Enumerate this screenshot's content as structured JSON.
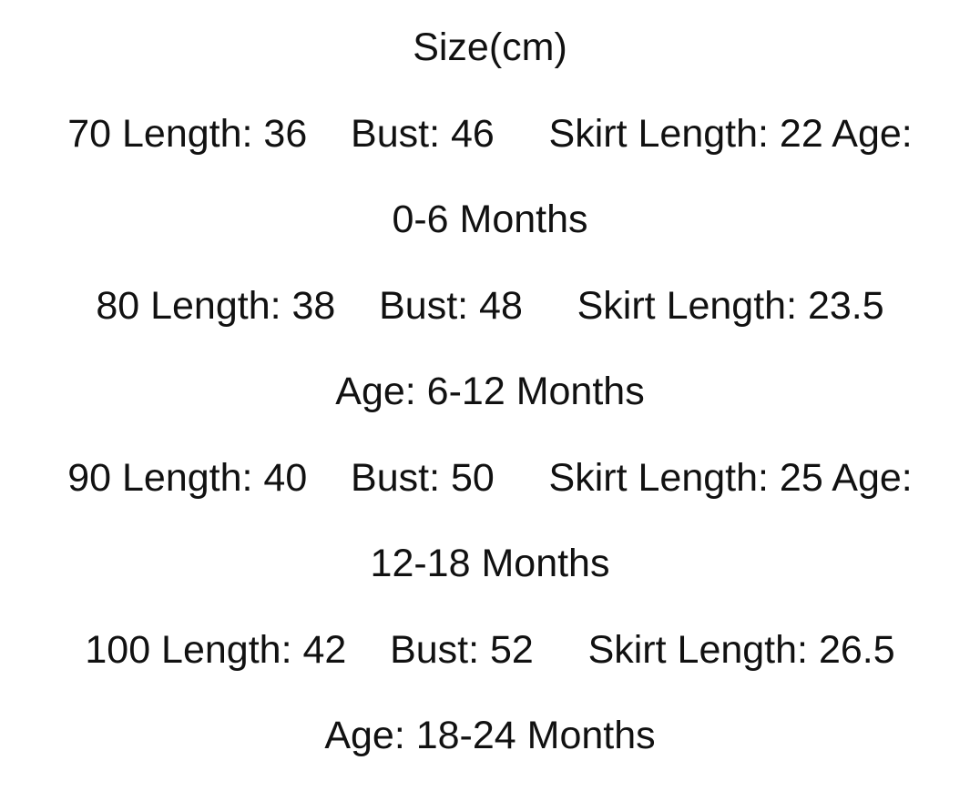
{
  "title": "Size(cm)",
  "sizes": [
    {
      "line1": "70 Length: 36    Bust: 46     Skirt Length: 22 Age:",
      "line2": "0-6 Months"
    },
    {
      "line1": "80 Length: 38    Bust: 48     Skirt Length: 23.5",
      "line2": "Age: 6-12 Months"
    },
    {
      "line1": "90 Length: 40    Bust: 50     Skirt Length: 25 Age:",
      "line2": "12-18 Months"
    },
    {
      "line1": "100 Length: 42    Bust: 52     Skirt Length: 26.5",
      "line2": "Age: 18-24 Months"
    }
  ]
}
